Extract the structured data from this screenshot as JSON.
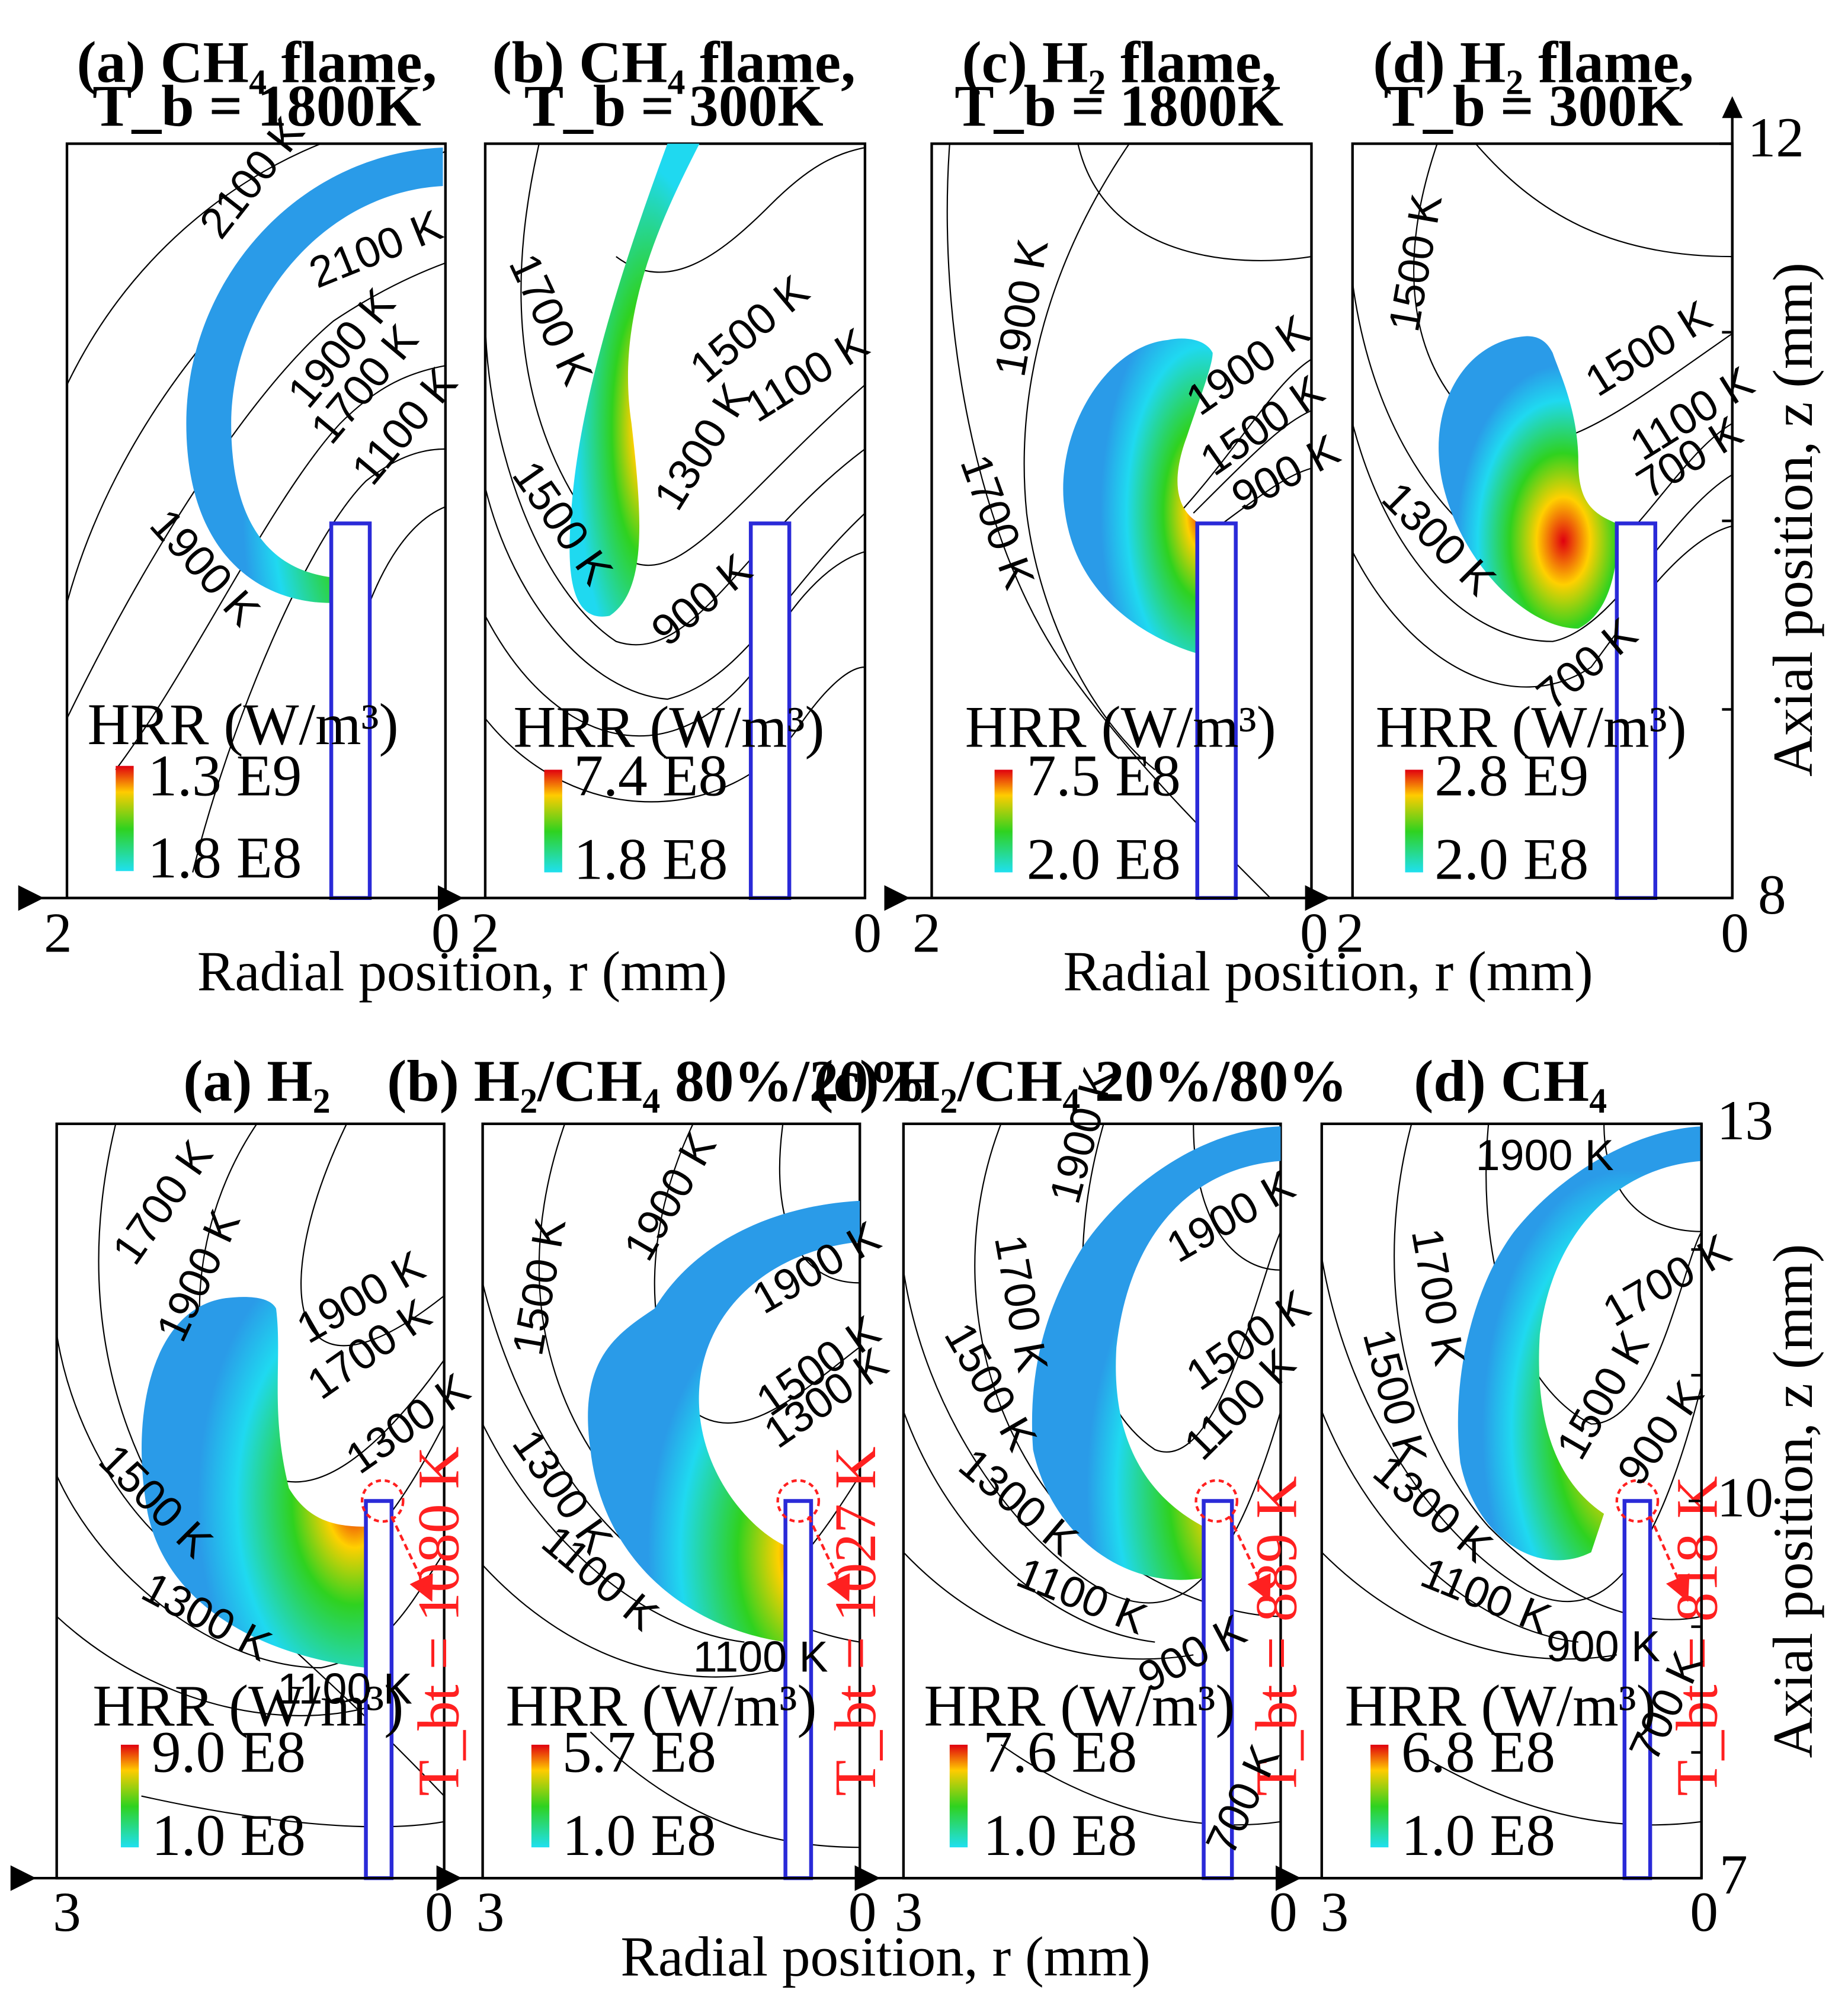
{
  "colors": {
    "hrr_high": "#e0000f",
    "hrr_mid_hi": "#ffd000",
    "hrr_mid": "#2fd21f",
    "hrr_low": "#1fd9f0",
    "hrr_base": "#2a9be8",
    "wall": "#2a2ad8",
    "breakthrough": "#ff2020",
    "isotherm": "#000000"
  },
  "top": {
    "xlabel": "Radial position, r (mm)",
    "ylabel": "Axial position, z (mm)",
    "y_ticks": [
      "12",
      "8"
    ],
    "x_ticks_left": "2",
    "x_ticks_right": "0",
    "hrr_title": "HRR (W/m³)",
    "panels": [
      {
        "title1": "(a) CH₄ flame,",
        "title2": "T_b = 1800K",
        "hrr_max": "1.3 E9",
        "hrr_min": "1.8 E8",
        "isotherms": [
          "2100 K",
          "2100 K",
          "1900 K",
          "1700 K",
          "1100 K",
          "1900 K"
        ]
      },
      {
        "title1": "(b) CH₄ flame,",
        "title2": "T_b = 300K",
        "hrr_max": "7.4 E8",
        "hrr_min": "1.8 E8",
        "isotherms": [
          "1700 K",
          "1500 K",
          "1100 K",
          "1500 K",
          "1300 K",
          "900 K"
        ]
      },
      {
        "title1": "(c) H₂ flame,",
        "title2": "T_b = 1800K",
        "hrr_max": "7.5 E8",
        "hrr_min": "2.0 E8",
        "isotherms": [
          "1900 K",
          "1900 K",
          "1500 K",
          "900 K",
          "1700 K"
        ]
      },
      {
        "title1": "(d) H₂ flame,",
        "title2": "T_b = 300K",
        "hrr_max": "2.8 E9",
        "hrr_min": "2.0 E8",
        "isotherms": [
          "1500 K",
          "1500 K",
          "1100 K",
          "700 K",
          "1300 K",
          "700 K"
        ]
      }
    ]
  },
  "bottom": {
    "xlabel": "Radial position, r (mm)",
    "ylabel": "Axial position, z (mm)",
    "y_ticks": [
      "13",
      "10",
      "7"
    ],
    "x_ticks_left": "3",
    "x_ticks_right": "0",
    "hrr_title": "HRR (W/m³)",
    "panels": [
      {
        "title": "(a) H₂",
        "hrr_max": "9.0 E8",
        "hrr_min": "1.0 E8",
        "tbt": "T_bt = 1080 K",
        "isotherms": [
          "1700 K",
          "1900 K",
          "1900 K",
          "1700 K",
          "1300 K",
          "1500 K",
          "1300 K",
          "1100 K"
        ]
      },
      {
        "title": "(b) H₂/CH₄ 80%/20%",
        "hrr_max": "5.7 E8",
        "hrr_min": "1.0 E8",
        "tbt": "T_bt = 1027 K",
        "isotherms": [
          "1900 K",
          "1500 K",
          "1900 K",
          "1500 K",
          "1300 K",
          "1300 K",
          "1100 K",
          "1100 K"
        ]
      },
      {
        "title": "(c) H₂/CH₄ 20%/80%",
        "hrr_max": "7.6 E8",
        "hrr_min": "1.0 E8",
        "tbt": "T_bt = 889 K",
        "isotherms": [
          "1900 K",
          "1900 K",
          "1700 K",
          "1500 K",
          "1500 K",
          "1100 K",
          "1300 K",
          "1100 K",
          "900 K",
          "700 K"
        ]
      },
      {
        "title": "(d) CH₄",
        "hrr_max": "6.8 E8",
        "hrr_min": "1.0 E8",
        "tbt": "T_bt = 818 K",
        "isotherms": [
          "1900 K",
          "1700 K",
          "1700 K",
          "1500 K",
          "1500 K",
          "900 K",
          "1300 K",
          "1100 K",
          "900 K",
          "700 K"
        ]
      }
    ]
  },
  "chart_data": [
    {
      "type": "heatmap",
      "title": "(a) CH₄ flame, T_b = 1800K",
      "xlabel": "Radial position, r (mm)",
      "ylabel": "Axial position, z (mm)",
      "xlim": [
        2,
        0
      ],
      "ylim": [
        8,
        12
      ],
      "hrr_range_W_m3": [
        180000000.0,
        1300000000.0
      ]
    },
    {
      "type": "heatmap",
      "title": "(b) CH₄ flame, T_b = 300K",
      "xlabel": "Radial position, r (mm)",
      "ylabel": "Axial position, z (mm)",
      "xlim": [
        2,
        0
      ],
      "ylim": [
        8,
        12
      ],
      "hrr_range_W_m3": [
        180000000.0,
        740000000.0
      ]
    },
    {
      "type": "heatmap",
      "title": "(c) H₂ flame, T_b = 1800K",
      "xlabel": "Radial position, r (mm)",
      "ylabel": "Axial position, z (mm)",
      "xlim": [
        2,
        0
      ],
      "ylim": [
        8,
        12
      ],
      "hrr_range_W_m3": [
        200000000.0,
        750000000.0
      ]
    },
    {
      "type": "heatmap",
      "title": "(d) H₂ flame, T_b = 300K",
      "xlabel": "Radial position, r (mm)",
      "ylabel": "Axial position, z (mm)",
      "xlim": [
        2,
        0
      ],
      "ylim": [
        8,
        12
      ],
      "hrr_range_W_m3": [
        200000000.0,
        2800000000.0
      ]
    },
    {
      "type": "heatmap",
      "title": "(a) H₂",
      "xlabel": "Radial position, r (mm)",
      "ylabel": "Axial position, z (mm)",
      "xlim": [
        3,
        0
      ],
      "ylim": [
        7,
        13
      ],
      "hrr_range_W_m3": [
        100000000.0,
        900000000.0
      ],
      "T_bt_K": 1080
    },
    {
      "type": "heatmap",
      "title": "(b) H₂/CH₄ 80%/20%",
      "xlabel": "Radial position, r (mm)",
      "ylabel": "Axial position, z (mm)",
      "xlim": [
        3,
        0
      ],
      "ylim": [
        7,
        13
      ],
      "hrr_range_W_m3": [
        100000000.0,
        570000000.0
      ],
      "T_bt_K": 1027
    },
    {
      "type": "heatmap",
      "title": "(c) H₂/CH₄ 20%/80%",
      "xlabel": "Radial position, r (mm)",
      "ylabel": "Axial position, z (mm)",
      "xlim": [
        3,
        0
      ],
      "ylim": [
        7,
        13
      ],
      "hrr_range_W_m3": [
        100000000.0,
        760000000.0
      ],
      "T_bt_K": 889
    },
    {
      "type": "heatmap",
      "title": "(d) CH₄",
      "xlabel": "Radial position, r (mm)",
      "ylabel": "Axial position, z (mm)",
      "xlim": [
        3,
        0
      ],
      "ylim": [
        7,
        13
      ],
      "hrr_range_W_m3": [
        100000000.0,
        680000000.0
      ],
      "T_bt_K": 818
    }
  ]
}
